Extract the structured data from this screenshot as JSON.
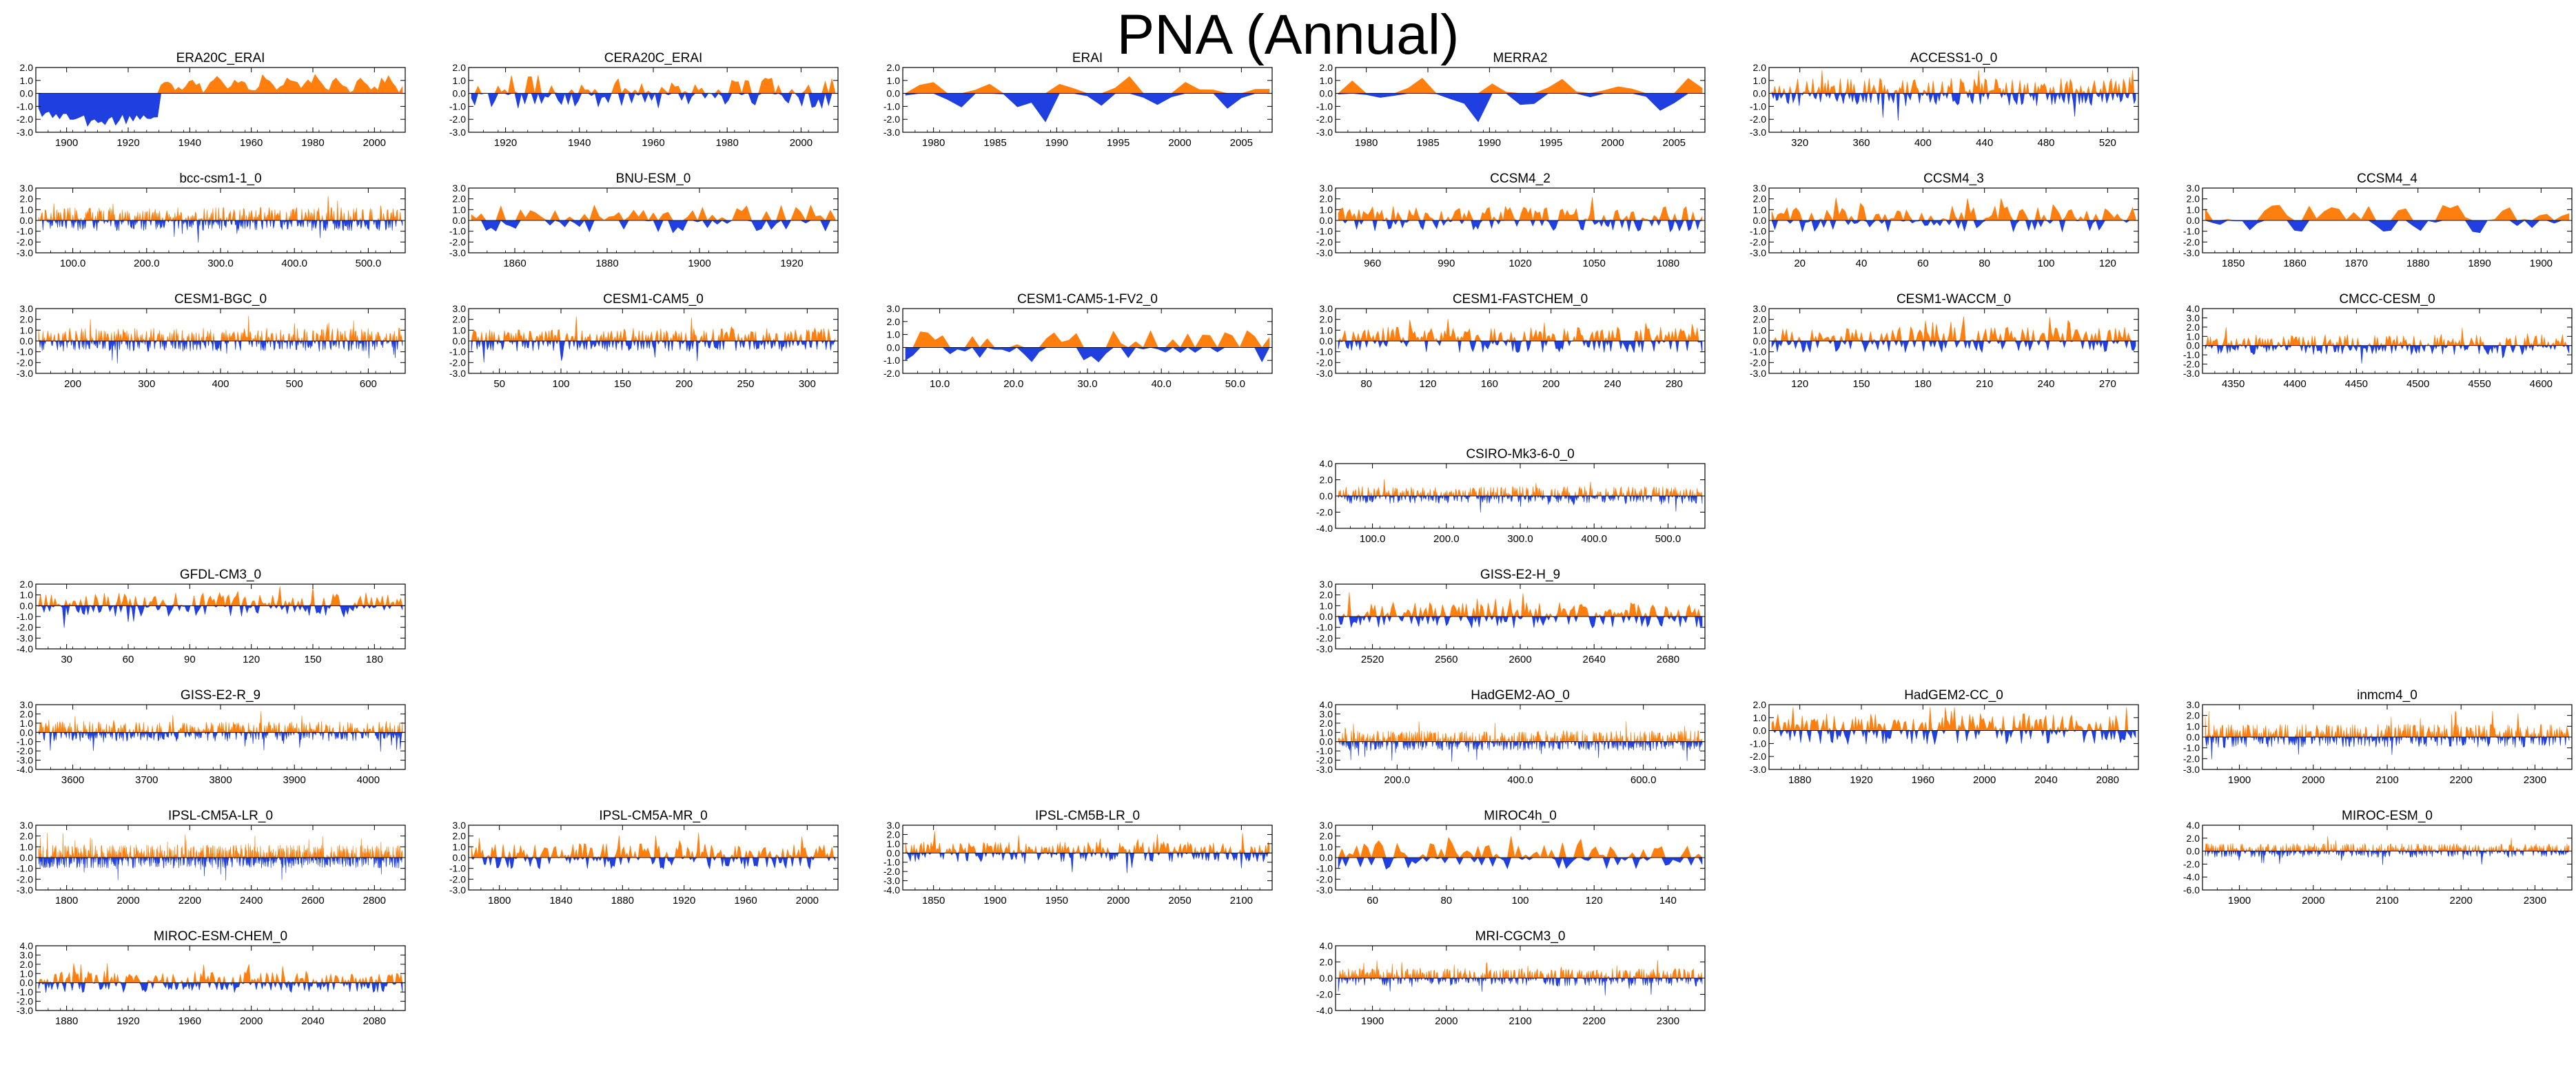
{
  "title": "PNA (Annual)",
  "colors": {
    "positive": "#ff7f0e",
    "negative": "#1f3fe0",
    "axis": "#000000",
    "background": "#ffffff"
  },
  "chart_data": [
    {
      "type": "area",
      "name": "ERA20C_ERAI",
      "x_ticks": [
        "1900",
        "1920",
        "1940",
        "1960",
        "1980",
        "2000"
      ],
      "y_ticks": [
        "2.0",
        "1.0",
        "0.0",
        "-1.0",
        "-2.0",
        "-3.0"
      ],
      "ylim": [
        -3,
        2
      ],
      "n": 105,
      "pattern": "era20c"
    },
    {
      "type": "area",
      "name": "CERA20C_ERAI",
      "x_ticks": [
        "1920",
        "1940",
        "1960",
        "1980",
        "2000"
      ],
      "y_ticks": [
        "2.0",
        "1.0",
        "0.0",
        "-1.0",
        "-2.0",
        "-3.0"
      ],
      "ylim": [
        -3,
        2
      ],
      "n": 110,
      "pattern": "smooth"
    },
    {
      "type": "area",
      "name": "ERAI",
      "x_ticks": [
        "1980",
        "1985",
        "1990",
        "1995",
        "2000",
        "2005"
      ],
      "y_ticks": [
        "2.0",
        "1.0",
        "0.0",
        "-1.0",
        "-2.0",
        "-3.0"
      ],
      "ylim": [
        -3,
        2
      ],
      "n": 27,
      "pattern": "reanalysis"
    },
    {
      "type": "area",
      "name": "MERRA2",
      "x_ticks": [
        "1980",
        "1985",
        "1990",
        "1995",
        "2000",
        "2005"
      ],
      "y_ticks": [
        "2.0",
        "1.0",
        "0.0",
        "-1.0",
        "-2.0",
        "-3.0"
      ],
      "ylim": [
        -3,
        2
      ],
      "n": 27,
      "pattern": "reanalysis"
    },
    {
      "type": "area",
      "name": "ACCESS1-0_0",
      "x_ticks": [
        "320",
        "360",
        "400",
        "440",
        "480",
        "520"
      ],
      "y_ticks": [
        "2.0",
        "1.0",
        "0.0",
        "-1.0",
        "-2.0",
        "-3.0"
      ],
      "ylim": [
        -3,
        2
      ],
      "n": 240,
      "pattern": "dense"
    },
    {
      "type": "area",
      "name": "bcc-csm1-1_0",
      "x_ticks": [
        "100.0",
        "200.0",
        "300.0",
        "400.0",
        "500.0"
      ],
      "y_ticks": [
        "3.0",
        "2.0",
        "1.0",
        "0.0",
        "-1.0",
        "-2.0",
        "-3.0"
      ],
      "ylim": [
        -3,
        3
      ],
      "n": 500,
      "pattern": "dense"
    },
    {
      "type": "area",
      "name": "BNU-ESM_0",
      "x_ticks": [
        "1860",
        "1880",
        "1900",
        "1920"
      ],
      "y_ticks": [
        "3.0",
        "2.0",
        "1.0",
        "0.0",
        "-1.0",
        "-2.0",
        "-3.0"
      ],
      "ylim": [
        -3,
        3
      ],
      "n": 75,
      "pattern": "smooth"
    },
    {
      "type": "area",
      "name": "CCSM4_2",
      "x_ticks": [
        "960",
        "990",
        "1020",
        "1050",
        "1080"
      ],
      "y_ticks": [
        "3.0",
        "2.0",
        "1.0",
        "0.0",
        "-1.0",
        "-2.0",
        "-3.0"
      ],
      "ylim": [
        -3,
        3
      ],
      "n": 160,
      "pattern": "medium"
    },
    {
      "type": "area",
      "name": "CCSM4_3",
      "x_ticks": [
        "20",
        "40",
        "60",
        "80",
        "100",
        "120"
      ],
      "y_ticks": [
        "3.0",
        "2.0",
        "1.0",
        "0.0",
        "-1.0",
        "-2.0",
        "-3.0"
      ],
      "ylim": [
        -3,
        3
      ],
      "n": 120,
      "pattern": "medium"
    },
    {
      "type": "area",
      "name": "CCSM4_4",
      "x_ticks": [
        "1850",
        "1860",
        "1870",
        "1880",
        "1890",
        "1900"
      ],
      "y_ticks": [
        "3.0",
        "2.0",
        "1.0",
        "0.0",
        "-1.0",
        "-2.0",
        "-3.0"
      ],
      "ylim": [
        -3,
        3
      ],
      "n": 50,
      "pattern": "smooth"
    },
    {
      "type": "area",
      "name": "CESM1-BGC_0",
      "x_ticks": [
        "200",
        "300",
        "400",
        "500",
        "600"
      ],
      "y_ticks": [
        "3.0",
        "2.0",
        "1.0",
        "0.0",
        "-1.0",
        "-2.0",
        "-3.0"
      ],
      "ylim": [
        -3,
        3
      ],
      "n": 500,
      "pattern": "dense"
    },
    {
      "type": "area",
      "name": "CESM1-CAM5_0",
      "x_ticks": [
        "50",
        "100",
        "150",
        "200",
        "250",
        "300"
      ],
      "y_ticks": [
        "3.0",
        "2.0",
        "1.0",
        "0.0",
        "-1.0",
        "-2.0",
        "-3.0"
      ],
      "ylim": [
        -3,
        3
      ],
      "n": 320,
      "pattern": "dense"
    },
    {
      "type": "area",
      "name": "CESM1-CAM5-1-FV2_0",
      "x_ticks": [
        "10.0",
        "20.0",
        "30.0",
        "40.0",
        "50.0"
      ],
      "y_ticks": [
        "3.0",
        "2.0",
        "1.0",
        "0.0",
        "-1.0",
        "-2.0"
      ],
      "ylim": [
        -2,
        3
      ],
      "n": 50,
      "pattern": "smooth"
    },
    {
      "type": "area",
      "name": "CESM1-FASTCHEM_0",
      "x_ticks": [
        "80",
        "120",
        "160",
        "200",
        "240",
        "280"
      ],
      "y_ticks": [
        "3.0",
        "2.0",
        "1.0",
        "0.0",
        "-1.0",
        "-2.0",
        "-3.0"
      ],
      "ylim": [
        -3,
        3
      ],
      "n": 220,
      "pattern": "medium"
    },
    {
      "type": "area",
      "name": "CESM1-WACCM_0",
      "x_ticks": [
        "120",
        "150",
        "180",
        "210",
        "240",
        "270"
      ],
      "y_ticks": [
        "3.0",
        "2.0",
        "1.0",
        "0.0",
        "-1.0",
        "-2.0",
        "-3.0"
      ],
      "ylim": [
        -3,
        3
      ],
      "n": 200,
      "pattern": "medium"
    },
    {
      "type": "area",
      "name": "CMCC-CESM_0",
      "x_ticks": [
        "4350",
        "4400",
        "4450",
        "4500",
        "4550",
        "4600"
      ],
      "y_ticks": [
        "4.0",
        "3.0",
        "2.0",
        "1.0",
        "0.0",
        "-1.0",
        "-2.0",
        "-3.0"
      ],
      "ylim": [
        -3,
        4
      ],
      "n": 280,
      "pattern": "dense"
    },
    {
      "type": "area",
      "name": "CSIRO-Mk3-6-0_0",
      "x_ticks": [
        "100.0",
        "200.0",
        "300.0",
        "400.0",
        "500.0"
      ],
      "y_ticks": [
        "4.0",
        "2.0",
        "0.0",
        "-2.0",
        "-4.0"
      ],
      "ylim": [
        -4,
        4
      ],
      "n": 500,
      "pattern": "dense"
    },
    {
      "type": "area",
      "name": "GFDL-CM3_0",
      "x_ticks": [
        "30",
        "60",
        "90",
        "120",
        "150",
        "180"
      ],
      "y_ticks": [
        "2.0",
        "1.0",
        "0.0",
        "-1.0",
        "-2.0",
        "-3.0",
        "-4.0"
      ],
      "ylim": [
        -4,
        2
      ],
      "n": 200,
      "pattern": "dense"
    },
    {
      "type": "area",
      "name": "GISS-E2-H_9",
      "x_ticks": [
        "2520",
        "2560",
        "2600",
        "2640",
        "2680"
      ],
      "y_ticks": [
        "3.0",
        "2.0",
        "1.0",
        "0.0",
        "-1.0",
        "-2.0",
        "-3.0"
      ],
      "ylim": [
        -3,
        3
      ],
      "n": 200,
      "pattern": "medium"
    },
    {
      "type": "area",
      "name": "GISS-E2-R_9",
      "x_ticks": [
        "3600",
        "3700",
        "3800",
        "3900",
        "4000"
      ],
      "y_ticks": [
        "3.0",
        "2.0",
        "1.0",
        "0.0",
        "-1.0",
        "-2.0",
        "-3.0",
        "-4.0"
      ],
      "ylim": [
        -4,
        3
      ],
      "n": 500,
      "pattern": "dense"
    },
    {
      "type": "area",
      "name": "HadGEM2-AO_0",
      "x_ticks": [
        "200.0",
        "400.0",
        "600.0"
      ],
      "y_ticks": [
        "4.0",
        "3.0",
        "2.0",
        "1.0",
        "0.0",
        "-1.0",
        "-2.0",
        "-3.0"
      ],
      "ylim": [
        -3,
        4
      ],
      "n": 700,
      "pattern": "dense"
    },
    {
      "type": "area",
      "name": "HadGEM2-CC_0",
      "x_ticks": [
        "1880",
        "1920",
        "1960",
        "2000",
        "2040",
        "2080"
      ],
      "y_ticks": [
        "2.0",
        "1.0",
        "0.0",
        "-1.0",
        "-2.0",
        "-3.0"
      ],
      "ylim": [
        -3,
        2
      ],
      "n": 240,
      "pattern": "medium"
    },
    {
      "type": "area",
      "name": "inmcm4_0",
      "x_ticks": [
        "1900",
        "2000",
        "2100",
        "2200",
        "2300"
      ],
      "y_ticks": [
        "3.0",
        "2.0",
        "1.0",
        "0.0",
        "-1.0",
        "-2.0",
        "-3.0"
      ],
      "ylim": [
        -3,
        3
      ],
      "n": 500,
      "pattern": "dense"
    },
    {
      "type": "area",
      "name": "IPSL-CM5A-LR_0",
      "x_ticks": [
        "1800",
        "2000",
        "2200",
        "2400",
        "2600",
        "2800"
      ],
      "y_ticks": [
        "3.0",
        "2.0",
        "1.0",
        "0.0",
        "-1.0",
        "-2.0",
        "-3.0"
      ],
      "ylim": [
        -3,
        3
      ],
      "n": 1000,
      "pattern": "dense"
    },
    {
      "type": "area",
      "name": "IPSL-CM5A-MR_0",
      "x_ticks": [
        "1800",
        "1840",
        "1880",
        "1920",
        "1960",
        "2000"
      ],
      "y_ticks": [
        "3.0",
        "2.0",
        "1.0",
        "0.0",
        "-1.0",
        "-2.0",
        "-3.0"
      ],
      "ylim": [
        -3,
        3
      ],
      "n": 230,
      "pattern": "medium"
    },
    {
      "type": "area",
      "name": "IPSL-CM5B-LR_0",
      "x_ticks": [
        "1850",
        "1900",
        "1950",
        "2000",
        "2050",
        "2100"
      ],
      "y_ticks": [
        "3.0",
        "2.0",
        "1.0",
        "0.0",
        "-1.0",
        "-2.0",
        "-3.0",
        "-4.0"
      ],
      "ylim": [
        -4,
        3
      ],
      "n": 300,
      "pattern": "dense"
    },
    {
      "type": "area",
      "name": "MIROC4h_0",
      "x_ticks": [
        "60",
        "80",
        "100",
        "120",
        "140"
      ],
      "y_ticks": [
        "3.0",
        "2.0",
        "1.0",
        "0.0",
        "-1.0",
        "-2.0",
        "-3.0"
      ],
      "ylim": [
        -3,
        3
      ],
      "n": 100,
      "pattern": "medium"
    },
    {
      "type": "area",
      "name": "MIROC-ESM_0",
      "x_ticks": [
        "1900",
        "2000",
        "2100",
        "2200",
        "2300"
      ],
      "y_ticks": [
        "4.0",
        "2.0",
        "0.0",
        "-2.0",
        "-4.0",
        "-6.0"
      ],
      "ylim": [
        -6,
        4
      ],
      "n": 530,
      "pattern": "dense"
    },
    {
      "type": "area",
      "name": "MIROC-ESM-CHEM_0",
      "x_ticks": [
        "1880",
        "1920",
        "1960",
        "2000",
        "2040",
        "2080"
      ],
      "y_ticks": [
        "4.0",
        "3.0",
        "2.0",
        "1.0",
        "0.0",
        "-1.0",
        "-2.0",
        "-3.0"
      ],
      "ylim": [
        -3,
        4
      ],
      "n": 250,
      "pattern": "medium"
    },
    {
      "type": "area",
      "name": "MRI-CGCM3_0",
      "x_ticks": [
        "1900",
        "2000",
        "2100",
        "2200",
        "2300"
      ],
      "y_ticks": [
        "4.0",
        "2.0",
        "0.0",
        "-2.0",
        "-4.0"
      ],
      "ylim": [
        -4,
        4
      ],
      "n": 500,
      "pattern": "dense"
    }
  ]
}
